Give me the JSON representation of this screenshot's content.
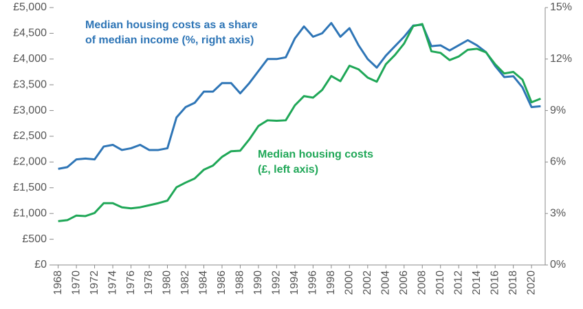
{
  "chart_data": {
    "type": "line",
    "x": [
      1968,
      1969,
      1970,
      1971,
      1972,
      1973,
      1974,
      1975,
      1976,
      1977,
      1978,
      1979,
      1980,
      1981,
      1982,
      1983,
      1984,
      1985,
      1986,
      1987,
      1988,
      1989,
      1990,
      1991,
      1992,
      1993,
      1994,
      1995,
      1996,
      1997,
      1998,
      1999,
      2000,
      2001,
      2002,
      2003,
      2004,
      2005,
      2006,
      2007,
      2008,
      2009,
      2010,
      2011,
      2012,
      2013,
      2014,
      2015,
      2016,
      2017,
      2018,
      2019,
      2020,
      2021
    ],
    "xlim": [
      1967.5,
      2021.5
    ],
    "xticks": [
      1968,
      1970,
      1972,
      1974,
      1976,
      1978,
      1980,
      1982,
      1984,
      1986,
      1988,
      1990,
      1992,
      1994,
      1996,
      1998,
      2000,
      2002,
      2004,
      2006,
      2008,
      2010,
      2012,
      2014,
      2016,
      2018,
      2020
    ],
    "ylim": [
      0,
      5000
    ],
    "yticks": [
      {
        "value": 0,
        "label": "£0"
      },
      {
        "value": 500,
        "label": "£500"
      },
      {
        "value": 1000,
        "label": "£1,000"
      },
      {
        "value": 1500,
        "label": "£1,500"
      },
      {
        "value": 2000,
        "label": "£2,000"
      },
      {
        "value": 2500,
        "label": "£2,500"
      },
      {
        "value": 3000,
        "label": "£3,000"
      },
      {
        "value": 3500,
        "label": "£3,500"
      },
      {
        "value": 4000,
        "label": "£4,000"
      },
      {
        "value": 4500,
        "label": "£4,500"
      },
      {
        "value": 5000,
        "label": "£5,000"
      }
    ],
    "y2lim": [
      0,
      15
    ],
    "y2ticks": [
      {
        "value": 0,
        "label": "0%"
      },
      {
        "value": 3,
        "label": "3%"
      },
      {
        "value": 6,
        "label": "6%"
      },
      {
        "value": 9,
        "label": "9%"
      },
      {
        "value": 12,
        "label": "12%"
      },
      {
        "value": 15,
        "label": "15%"
      }
    ],
    "series": [
      {
        "color": "#2e75b6",
        "axis": "y2",
        "values": [
          5.6,
          5.7,
          6.15,
          6.2,
          6.15,
          6.9,
          7.0,
          6.7,
          6.8,
          7.0,
          6.7,
          6.7,
          6.8,
          8.6,
          9.2,
          9.45,
          10.1,
          10.1,
          10.6,
          10.6,
          10.0,
          10.6,
          11.3,
          12.0,
          12.0,
          12.1,
          13.2,
          13.9,
          13.3,
          13.5,
          14.1,
          13.3,
          13.8,
          12.8,
          12.0,
          11.5,
          12.2,
          12.75,
          13.3,
          13.95,
          14.0,
          12.75,
          12.8,
          12.5,
          12.8,
          13.1,
          12.8,
          12.4,
          11.6,
          10.95,
          11.0,
          10.35,
          9.2,
          9.25
        ]
      },
      {
        "color": "#1fa757",
        "values": [
          850,
          870,
          960,
          950,
          1010,
          1200,
          1200,
          1120,
          1100,
          1120,
          1160,
          1200,
          1250,
          1510,
          1600,
          1680,
          1850,
          1930,
          2100,
          2210,
          2220,
          2440,
          2700,
          2810,
          2800,
          2810,
          3100,
          3280,
          3250,
          3400,
          3670,
          3570,
          3870,
          3800,
          3640,
          3560,
          3900,
          4080,
          4300,
          4640,
          4680,
          4150,
          4120,
          3980,
          4050,
          4180,
          4200,
          4130,
          3900,
          3720,
          3750,
          3600,
          3160,
          3230
        ]
      }
    ],
    "annotations": [
      {
        "lines": [
          "Median housing costs as a share",
          "of median income (%, right axis)"
        ],
        "color": "#2e75b6"
      },
      {
        "lines": [
          "Median housing costs",
          "(£, left axis)"
        ],
        "color": "#1fa757"
      }
    ]
  }
}
